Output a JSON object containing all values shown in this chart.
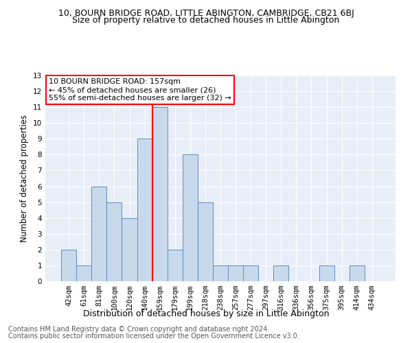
{
  "title_line1": "10, BOURN BRIDGE ROAD, LITTLE ABINGTON, CAMBRIDGE, CB21 6BJ",
  "title_line2": "Size of property relative to detached houses in Little Abington",
  "xlabel": "Distribution of detached houses by size in Little Abington",
  "ylabel": "Number of detached properties",
  "categories": [
    "42sqm",
    "61sqm",
    "81sqm",
    "100sqm",
    "120sqm",
    "140sqm",
    "159sqm",
    "179sqm",
    "199sqm",
    "218sqm",
    "238sqm",
    "257sqm",
    "277sqm",
    "297sqm",
    "316sqm",
    "336sqm",
    "356sqm",
    "375sqm",
    "395sqm",
    "414sqm",
    "434sqm"
  ],
  "values": [
    2,
    1,
    6,
    5,
    4,
    9,
    11,
    2,
    8,
    5,
    1,
    1,
    1,
    0,
    1,
    0,
    0,
    1,
    0,
    1,
    0
  ],
  "bar_color": "#c9d9ec",
  "bar_edge_color": "#5a8abf",
  "property_line_x": 6,
  "annotation_text_line1": "10 BOURN BRIDGE ROAD: 157sqm",
  "annotation_text_line2": "← 45% of detached houses are smaller (26)",
  "annotation_text_line3": "55% of semi-detached houses are larger (32) →",
  "annotation_box_color": "white",
  "annotation_box_edge_color": "red",
  "annotation_line_color": "red",
  "ylim_max": 13,
  "yticks": [
    0,
    1,
    2,
    3,
    4,
    5,
    6,
    7,
    8,
    9,
    10,
    11,
    12,
    13
  ],
  "background_color": "#e8eef8",
  "grid_color": "white",
  "footer_line1": "Contains HM Land Registry data © Crown copyright and database right 2024.",
  "footer_line2": "Contains public sector information licensed under the Open Government Licence v3.0.",
  "title1_fontsize": 9,
  "title2_fontsize": 9,
  "xlabel_fontsize": 9,
  "ylabel_fontsize": 8.5,
  "annotation_fontsize": 8,
  "footer_fontsize": 7,
  "tick_fontsize": 7.5
}
